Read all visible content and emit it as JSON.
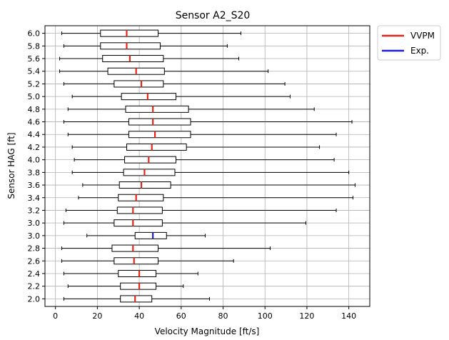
{
  "chart_data": {
    "type": "boxplot",
    "orientation": "horizontal",
    "title": "Sensor A2_S20",
    "xlabel": "Velocity Magnitude [ft/s]",
    "ylabel": "Sensor HAG [ft]",
    "xlim": [
      -5,
      150
    ],
    "x_ticks": [
      0,
      20,
      40,
      60,
      80,
      100,
      120,
      140
    ],
    "grid": true,
    "legend": {
      "placement": "outside-top-right",
      "entries": [
        {
          "label": "VVPM",
          "color": "#e8261c"
        },
        {
          "label": "Exp.",
          "color": "#1f1fd6"
        }
      ]
    },
    "series": [
      {
        "name": "VVPM",
        "color": "#e8261c",
        "boxes": [
          {
            "category": "2.0",
            "whisker_low": 4,
            "q1": 31,
            "median": 38,
            "q3": 46,
            "whisker_high": 73.5
          },
          {
            "category": "2.2",
            "whisker_low": 6,
            "q1": 31,
            "median": 40,
            "q3": 48,
            "whisker_high": 61
          },
          {
            "category": "2.4",
            "whisker_low": 4,
            "q1": 30,
            "median": 40,
            "q3": 48,
            "whisker_high": 68
          },
          {
            "category": "2.6",
            "whisker_low": 3,
            "q1": 28,
            "median": 37.5,
            "q3": 49,
            "whisker_high": 85
          },
          {
            "category": "2.8",
            "whisker_low": 3,
            "q1": 27,
            "median": 37,
            "q3": 49,
            "whisker_high": 102.5
          },
          {
            "category": "3.0",
            "whisker_low": 4,
            "q1": 28,
            "median": 37,
            "q3": 51,
            "whisker_high": 119.5
          },
          {
            "category": "3.2",
            "whisker_low": 5,
            "q1": 29.5,
            "median": 37,
            "q3": 51,
            "whisker_high": 134
          },
          {
            "category": "3.4",
            "whisker_low": 11,
            "q1": 30,
            "median": 38.5,
            "q3": 51.5,
            "whisker_high": 142
          },
          {
            "category": "3.6",
            "whisker_low": 13,
            "q1": 30.5,
            "median": 41,
            "q3": 55,
            "whisker_high": 143
          },
          {
            "category": "3.8",
            "whisker_low": 8,
            "q1": 32.5,
            "median": 42.5,
            "q3": 57,
            "whisker_high": 140
          },
          {
            "category": "4.0",
            "whisker_low": 9,
            "q1": 33,
            "median": 44.5,
            "q3": 57.5,
            "whisker_high": 133
          },
          {
            "category": "4.2",
            "whisker_low": 8,
            "q1": 34,
            "median": 46,
            "q3": 62.5,
            "whisker_high": 126
          },
          {
            "category": "4.4",
            "whisker_low": 6,
            "q1": 35,
            "median": 47.5,
            "q3": 64.5,
            "whisker_high": 134
          },
          {
            "category": "4.6",
            "whisker_low": 4,
            "q1": 35,
            "median": 46.5,
            "q3": 64.5,
            "whisker_high": 141.5
          },
          {
            "category": "4.8",
            "whisker_low": 6,
            "q1": 33.5,
            "median": 46.5,
            "q3": 63.5,
            "whisker_high": 123.5
          },
          {
            "category": "5.0",
            "whisker_low": 8,
            "q1": 31.5,
            "median": 44,
            "q3": 57.5,
            "whisker_high": 112
          },
          {
            "category": "5.2",
            "whisker_low": 4,
            "q1": 28,
            "median": 41,
            "q3": 51.5,
            "whisker_high": 109.5
          },
          {
            "category": "5.4",
            "whisker_low": 2,
            "q1": 25,
            "median": 38.5,
            "q3": 52,
            "whisker_high": 101.5
          },
          {
            "category": "5.6",
            "whisker_low": 2,
            "q1": 22.5,
            "median": 35.5,
            "q3": 51.5,
            "whisker_high": 87.5
          },
          {
            "category": "5.8",
            "whisker_low": 4,
            "q1": 21.5,
            "median": 34,
            "q3": 50,
            "whisker_high": 82
          },
          {
            "category": "6.0",
            "whisker_low": 3,
            "q1": 21.5,
            "median": 34,
            "q3": 49,
            "whisker_high": 88.5
          }
        ]
      },
      {
        "name": "Exp.",
        "color": "#1f1fd6",
        "boxes": [
          {
            "category": "3.0",
            "whisker_low": 15,
            "q1": 38,
            "median": 46.5,
            "q3": 53,
            "whisker_high": 71.5
          }
        ]
      }
    ],
    "rows": [
      {
        "label": "2.0",
        "series": "VVPM",
        "box": 0
      },
      {
        "label": "2.2",
        "series": "VVPM",
        "box": 1
      },
      {
        "label": "2.4",
        "series": "VVPM",
        "box": 2
      },
      {
        "label": "2.6",
        "series": "VVPM",
        "box": 3
      },
      {
        "label": "2.8",
        "series": "VVPM",
        "box": 4
      },
      {
        "label": "3.0",
        "series": "Exp.",
        "box": 0
      },
      {
        "label": "3.0",
        "series": "VVPM",
        "box": 5
      },
      {
        "label": "3.2",
        "series": "VVPM",
        "box": 6
      },
      {
        "label": "3.4",
        "series": "VVPM",
        "box": 7
      },
      {
        "label": "3.6",
        "series": "VVPM",
        "box": 8
      },
      {
        "label": "3.8",
        "series": "VVPM",
        "box": 9
      },
      {
        "label": "4.0",
        "series": "VVPM",
        "box": 10
      },
      {
        "label": "4.2",
        "series": "VVPM",
        "box": 11
      },
      {
        "label": "4.4",
        "series": "VVPM",
        "box": 12
      },
      {
        "label": "4.6",
        "series": "VVPM",
        "box": 13
      },
      {
        "label": "4.8",
        "series": "VVPM",
        "box": 14
      },
      {
        "label": "5.0",
        "series": "VVPM",
        "box": 15
      },
      {
        "label": "5.2",
        "series": "VVPM",
        "box": 16
      },
      {
        "label": "5.4",
        "series": "VVPM",
        "box": 17
      },
      {
        "label": "5.6",
        "series": "VVPM",
        "box": 18
      },
      {
        "label": "5.8",
        "series": "VVPM",
        "box": 19
      },
      {
        "label": "6.0",
        "series": "VVPM",
        "box": 20
      }
    ]
  }
}
